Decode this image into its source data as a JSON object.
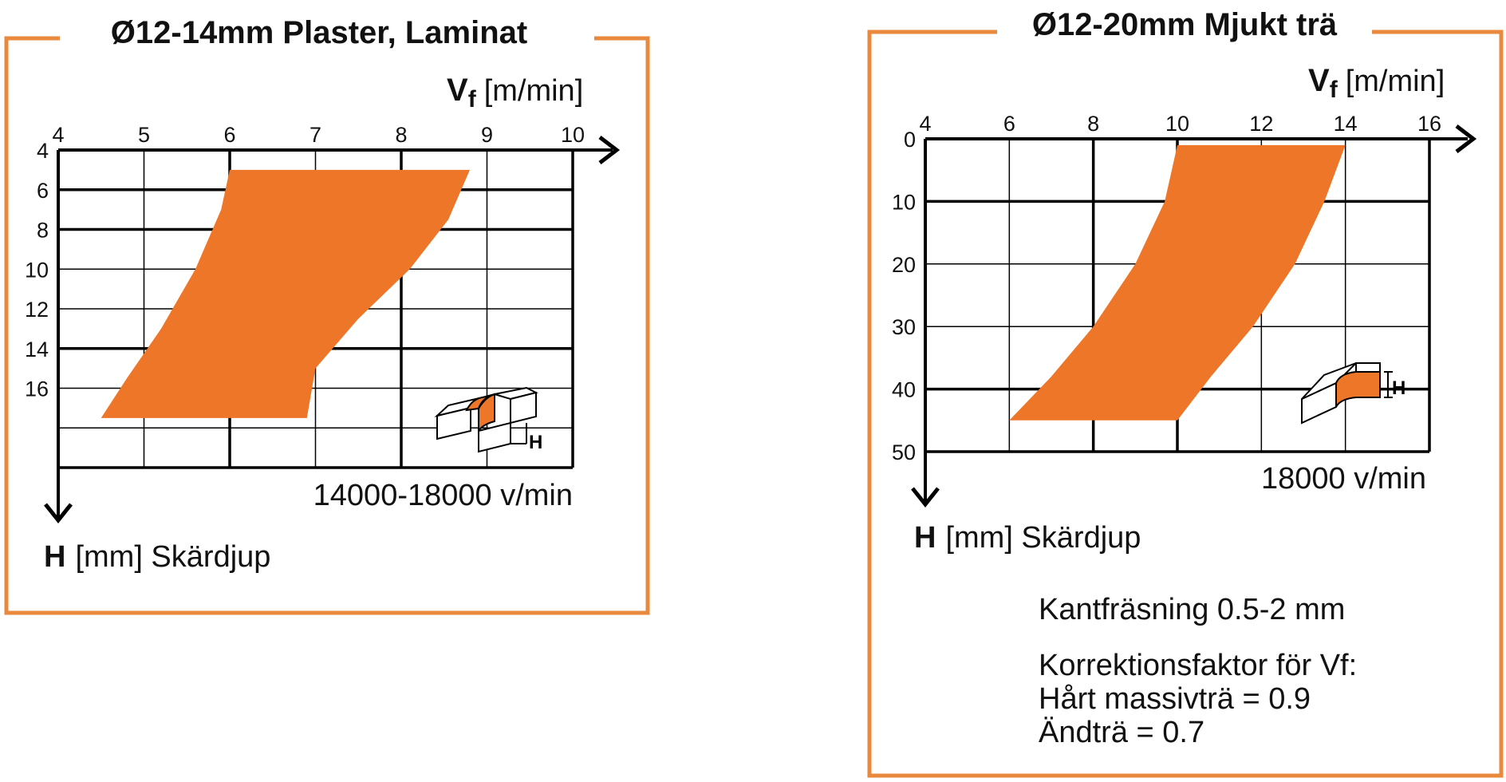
{
  "colors": {
    "accent": "#ED7628",
    "frame": "#E9893D",
    "grid": "#000000",
    "text": "#111111"
  },
  "chart_data": [
    {
      "type": "area",
      "title": "Ø12-14mm Plaster, Laminat",
      "x_axis": {
        "symbol": "V",
        "subscript": "f",
        "unit": "[m/min]",
        "min": 4,
        "max": 10,
        "ticks": [
          4,
          5,
          6,
          7,
          8,
          9,
          10
        ]
      },
      "y_axis": {
        "symbol": "H",
        "unit": "[mm] Skärdjup",
        "min": 4,
        "max": 20,
        "ticks": [
          4,
          6,
          8,
          10,
          12,
          14,
          16
        ]
      },
      "speed_label": "14000-18000 v/min",
      "area": {
        "left": [
          [
            6.0,
            5
          ],
          [
            5.9,
            7
          ],
          [
            5.6,
            10
          ],
          [
            5.2,
            13
          ],
          [
            4.8,
            15.5
          ],
          [
            4.5,
            17.5
          ]
        ],
        "right": [
          [
            8.8,
            5
          ],
          [
            8.55,
            7.5
          ],
          [
            8.1,
            10
          ],
          [
            7.5,
            12.5
          ],
          [
            7.0,
            15
          ],
          [
            6.9,
            17.5
          ]
        ]
      },
      "icon": "edge-profile-block-icon",
      "icon_label": "H"
    },
    {
      "type": "area",
      "title": "Ø12-20mm Mjukt trä",
      "x_axis": {
        "symbol": "V",
        "subscript": "f",
        "unit": "[m/min]",
        "min": 4,
        "max": 16,
        "ticks": [
          4,
          6,
          8,
          10,
          12,
          14,
          16
        ]
      },
      "y_axis": {
        "symbol": "H",
        "unit": "[mm] Skärdjup",
        "min": 0,
        "max": 50,
        "ticks": [
          0,
          10,
          20,
          30,
          40,
          50
        ]
      },
      "speed_label": "18000 v/min",
      "area": {
        "left": [
          [
            10.0,
            1
          ],
          [
            9.7,
            10
          ],
          [
            9.0,
            20
          ],
          [
            8.0,
            30
          ],
          [
            7.0,
            38
          ],
          [
            6.0,
            45
          ]
        ],
        "right": [
          [
            14.0,
            1
          ],
          [
            13.5,
            10
          ],
          [
            12.8,
            20
          ],
          [
            11.8,
            30
          ],
          [
            10.8,
            38
          ],
          [
            10.0,
            45
          ]
        ]
      },
      "icon": "edge-rebate-block-icon",
      "icon_label": "H"
    }
  ],
  "notes": {
    "edge": "Kantfräsning 0.5-2 mm",
    "correction_title": "Korrektionsfaktor för Vf:",
    "hard_wood": "Hårt massivträ = 0.9",
    "end_grain": "Ändträ = 0.7"
  }
}
